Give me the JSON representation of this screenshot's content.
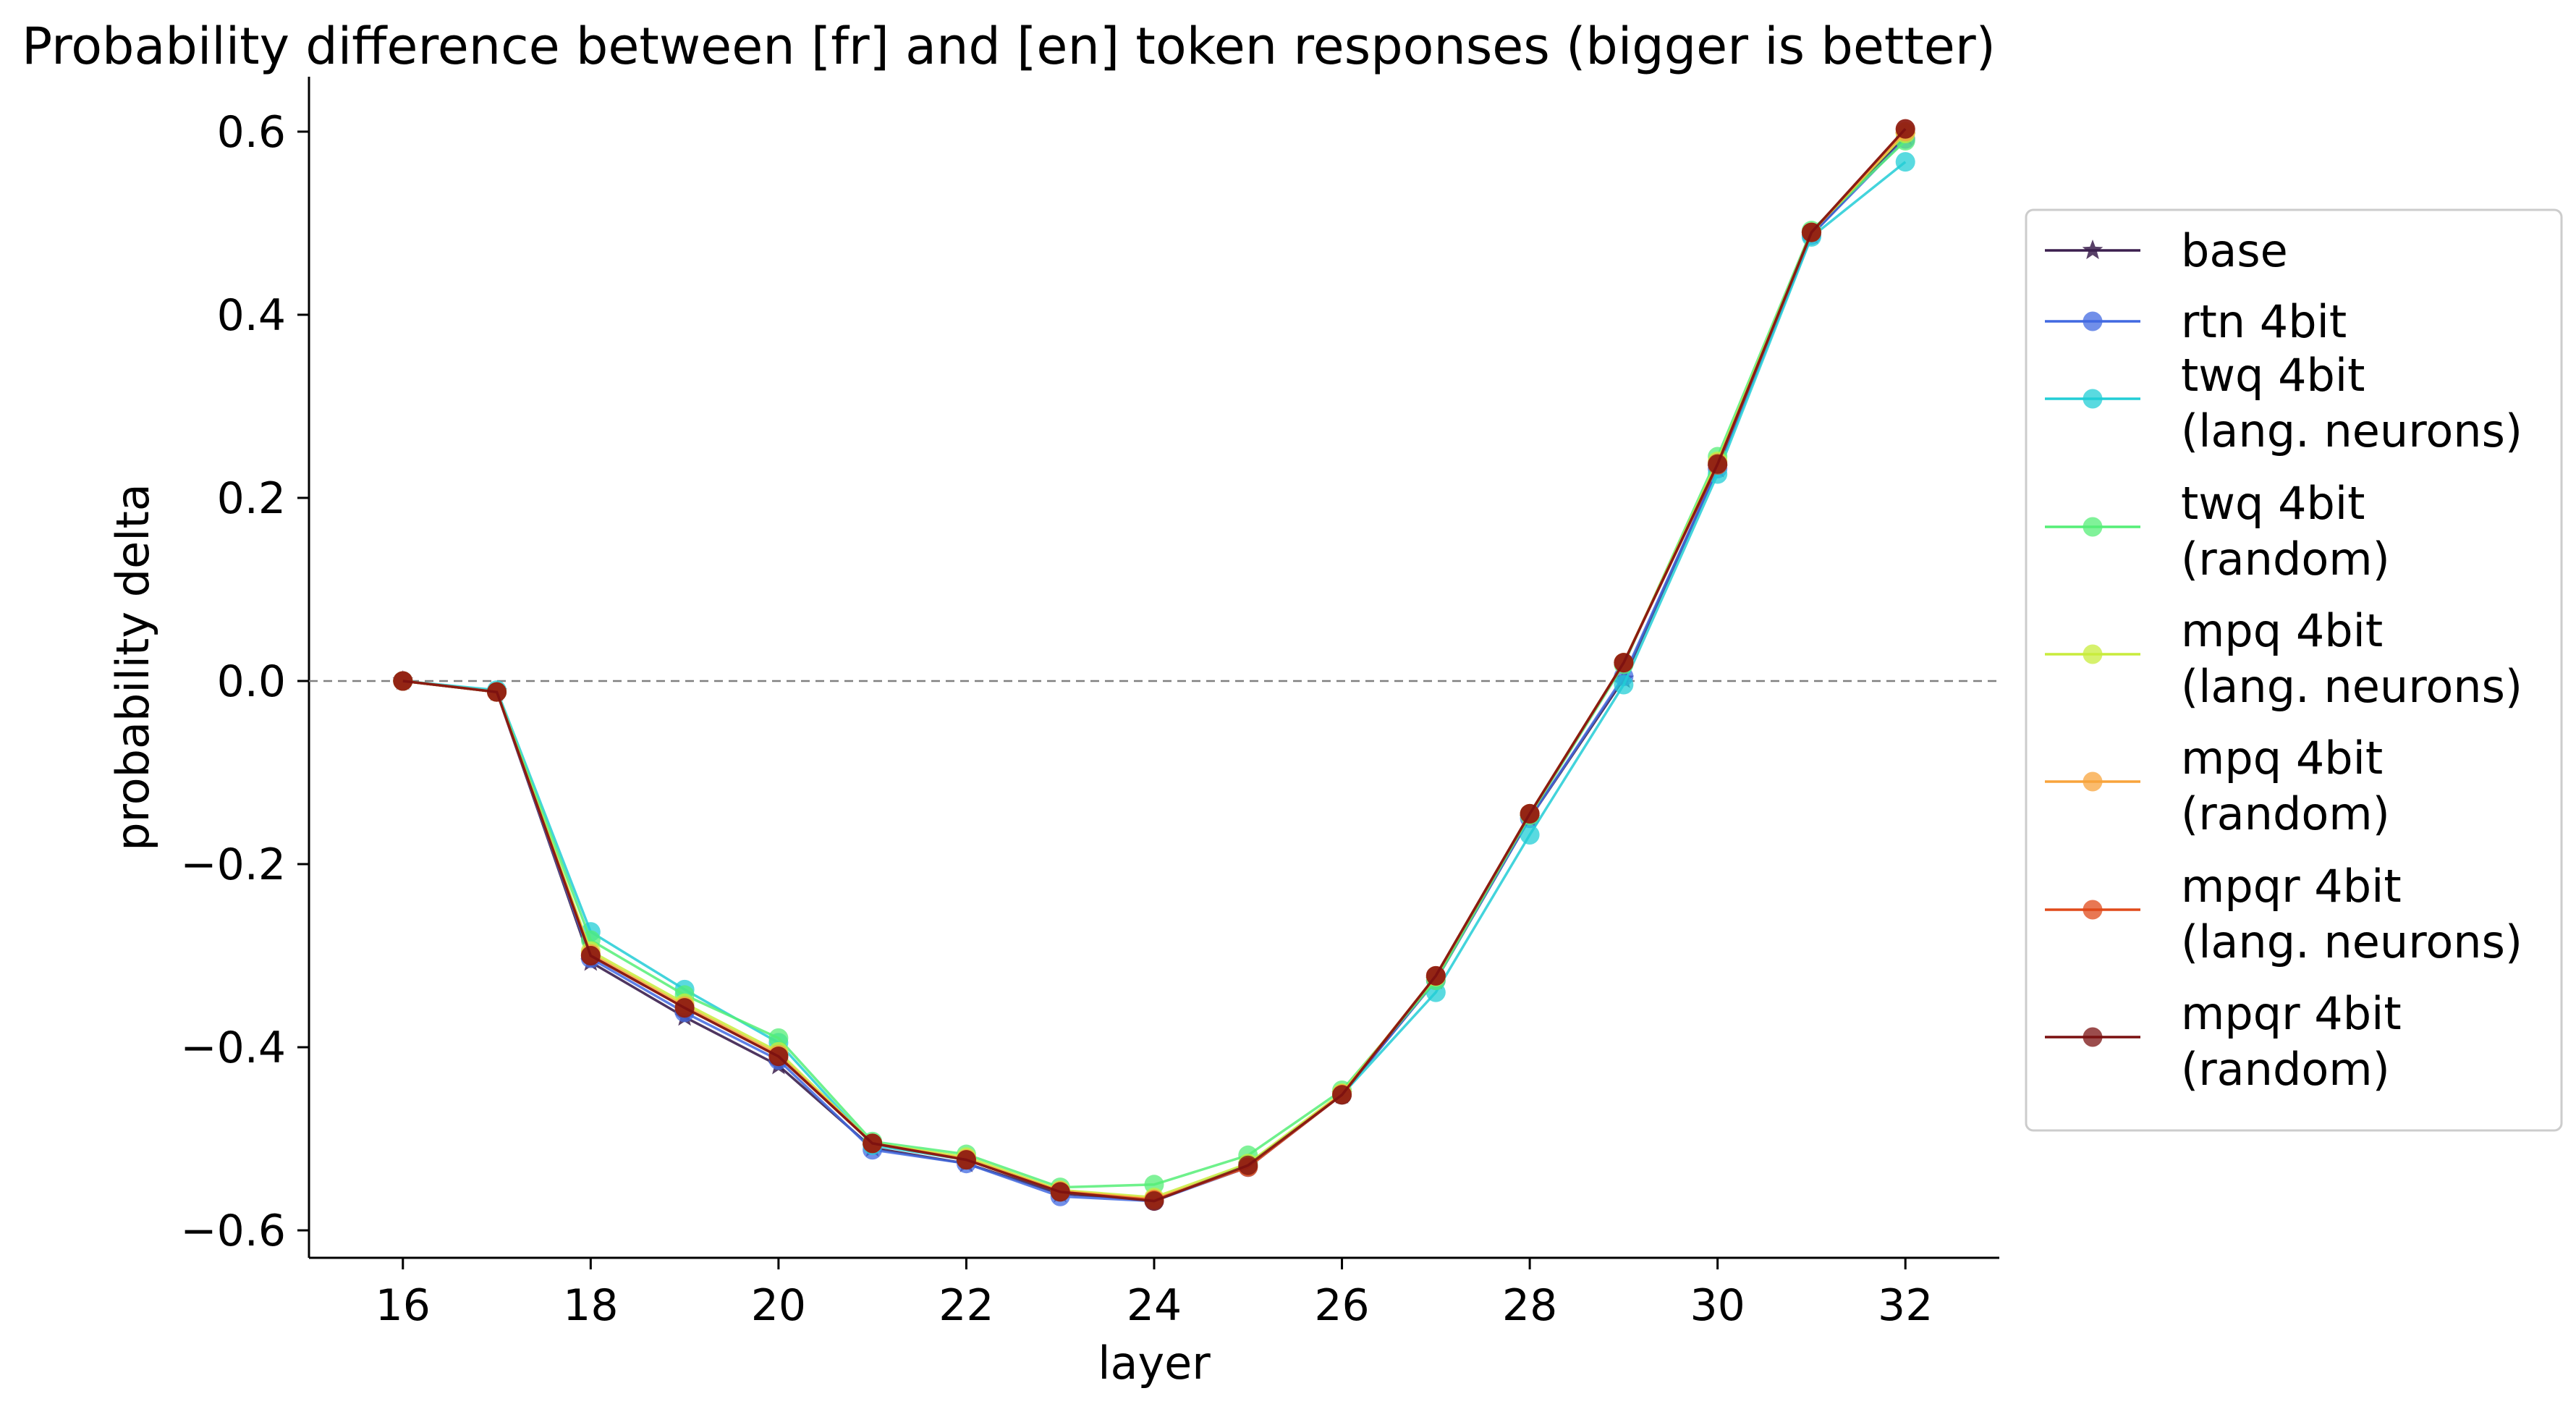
{
  "chart_data": {
    "type": "line",
    "title": "Probability difference between [fr] and [en] token responses (bigger is better)",
    "xlabel": "layer",
    "ylabel": "probability delta",
    "x": [
      16,
      17,
      18,
      19,
      20,
      21,
      22,
      23,
      24,
      25,
      26,
      27,
      28,
      29,
      30,
      31,
      32
    ],
    "xlim": [
      15,
      33
    ],
    "ylim": [
      -0.63,
      0.66
    ],
    "xticks": [
      16,
      18,
      20,
      22,
      24,
      26,
      28,
      30,
      32
    ],
    "xtick_labels": [
      "16",
      "18",
      "20",
      "22",
      "24",
      "26",
      "28",
      "30",
      "32"
    ],
    "yticks": [
      -0.6,
      -0.4,
      -0.2,
      0.0,
      0.2,
      0.4,
      0.6
    ],
    "ytick_labels": [
      "−0.6",
      "−0.4",
      "−0.2",
      "0.0",
      "0.2",
      "0.4",
      "0.6"
    ],
    "reference_line": {
      "y": 0.0,
      "style": "dashed",
      "color": "#808080"
    },
    "grid": false,
    "legend_position": "right, outside plot",
    "series": [
      {
        "name": "base",
        "marker": "star",
        "color": "#3b1f4e",
        "values": [
          0.0,
          -0.012,
          -0.307,
          -0.367,
          -0.42,
          -0.51,
          -0.527,
          -0.56,
          -0.567,
          -0.529,
          -0.452,
          -0.327,
          -0.15,
          0.002,
          0.232,
          0.487,
          0.595
        ]
      },
      {
        "name": "rtn 4bit",
        "marker": "circle",
        "color": "#4169e1",
        "values": [
          0.0,
          -0.012,
          -0.303,
          -0.362,
          -0.414,
          -0.512,
          -0.527,
          -0.563,
          -0.568,
          -0.531,
          -0.452,
          -0.327,
          -0.15,
          0.005,
          0.232,
          0.487,
          0.592
        ]
      },
      {
        "name": "twq 4bit\n(lang. neurons)",
        "marker": "circle",
        "color": "#22cdd6",
        "values": [
          0.0,
          -0.01,
          -0.274,
          -0.337,
          -0.395,
          -0.507,
          -0.523,
          -0.558,
          -0.567,
          -0.528,
          -0.452,
          -0.34,
          -0.168,
          -0.004,
          0.226,
          0.485,
          0.567
        ]
      },
      {
        "name": "twq 4bit\n(random)",
        "marker": "circle",
        "color": "#55ee77",
        "values": [
          0.0,
          -0.012,
          -0.283,
          -0.343,
          -0.39,
          -0.503,
          -0.517,
          -0.553,
          -0.55,
          -0.518,
          -0.447,
          -0.327,
          -0.147,
          0.018,
          0.245,
          0.492,
          0.59
        ]
      },
      {
        "name": "mpq 4bit\n(lang. neurons)",
        "marker": "circle",
        "color": "#c8ec3c",
        "values": [
          0.0,
          -0.012,
          -0.295,
          -0.352,
          -0.405,
          -0.505,
          -0.52,
          -0.556,
          -0.564,
          -0.527,
          -0.45,
          -0.323,
          -0.145,
          0.02,
          0.24,
          0.49,
          0.598
        ]
      },
      {
        "name": "mpq 4bit\n(random)",
        "marker": "circle",
        "color": "#f8a43c",
        "values": [
          0.0,
          -0.012,
          -0.298,
          -0.355,
          -0.408,
          -0.505,
          -0.522,
          -0.557,
          -0.566,
          -0.53,
          -0.451,
          -0.322,
          -0.145,
          0.02,
          0.238,
          0.49,
          0.6
        ]
      },
      {
        "name": "mpqr 4bit\n(lang. neurons)",
        "marker": "circle",
        "color": "#e04a1a",
        "values": [
          0.0,
          -0.012,
          -0.3,
          -0.357,
          -0.41,
          -0.505,
          -0.523,
          -0.558,
          -0.567,
          -0.531,
          -0.452,
          -0.322,
          -0.145,
          0.02,
          0.236,
          0.49,
          0.603
        ]
      },
      {
        "name": "mpqr 4bit\n(random)",
        "marker": "circle",
        "color": "#7a1010",
        "values": [
          0.0,
          -0.012,
          -0.3,
          -0.357,
          -0.41,
          -0.505,
          -0.523,
          -0.558,
          -0.568,
          -0.529,
          -0.452,
          -0.322,
          -0.145,
          0.02,
          0.237,
          0.49,
          0.603
        ]
      }
    ]
  }
}
